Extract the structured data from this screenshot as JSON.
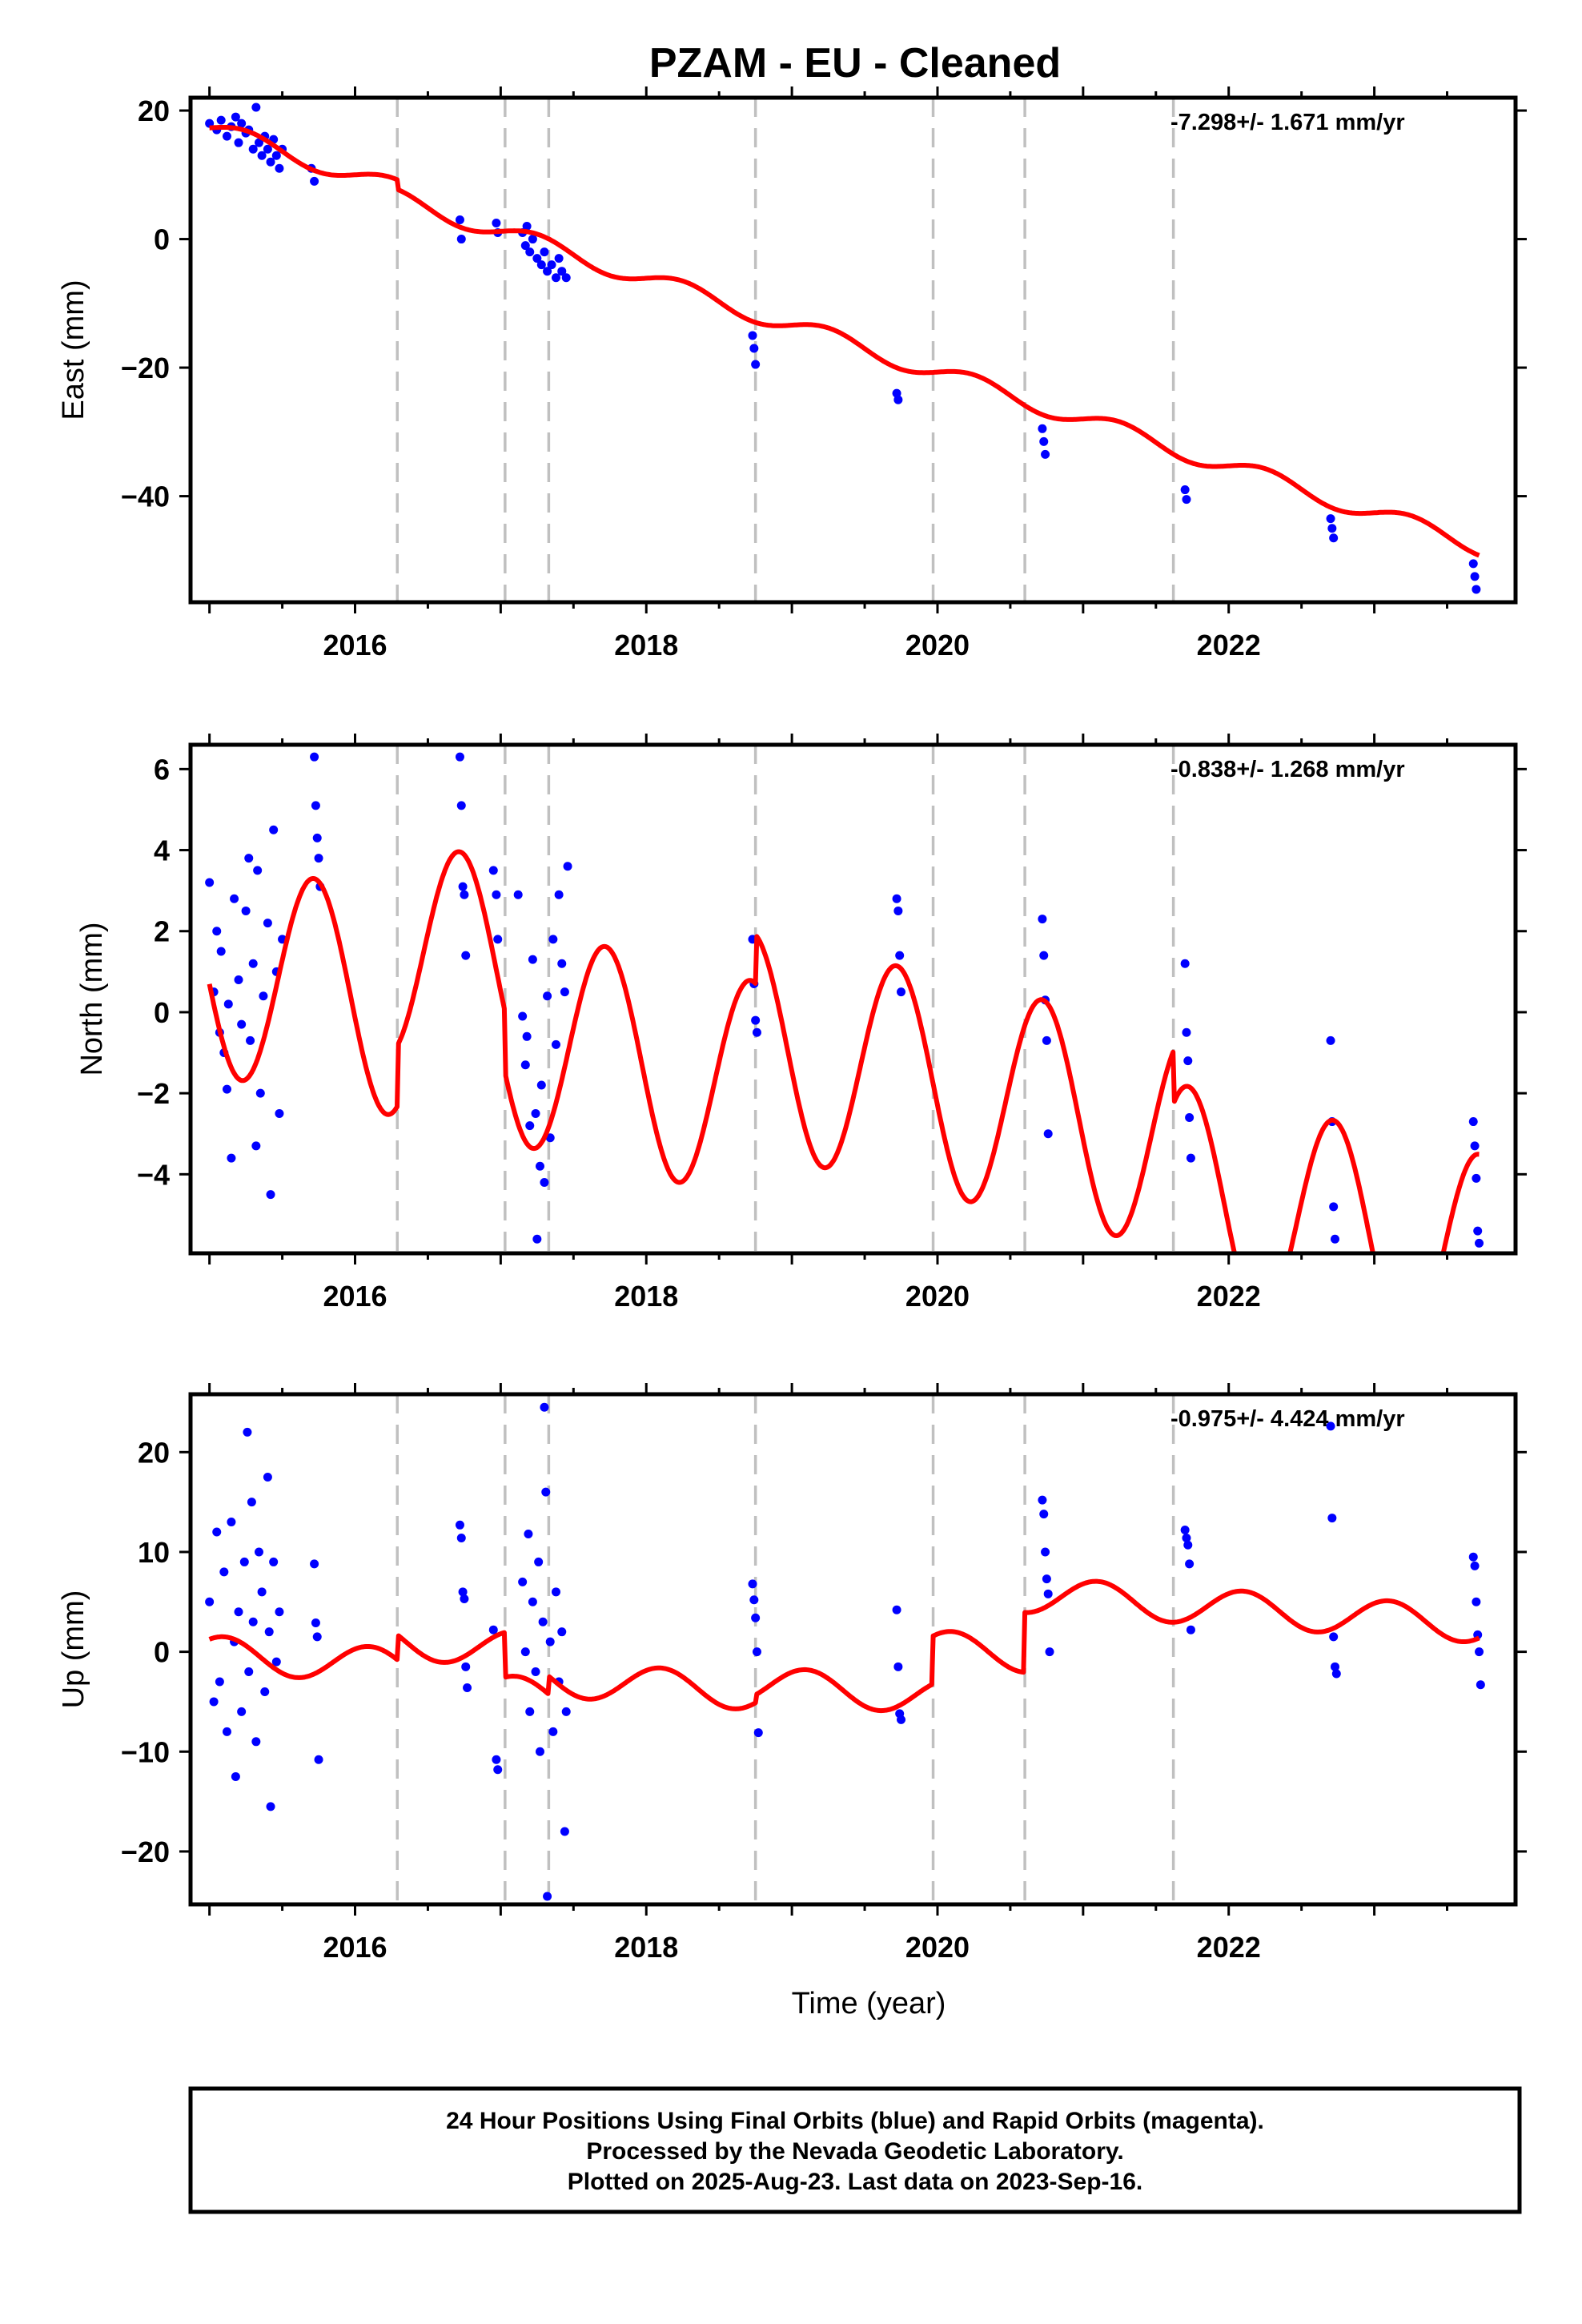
{
  "title": "PZAM  - EU - Cleaned",
  "colors": {
    "final_orbits": "#0000ff",
    "model": "#ff0000",
    "breaks": "#c0c0c0",
    "frame": "#000000"
  },
  "xlabel": "Time (year)",
  "footer": {
    "line1": "24 Hour Positions Using Final Orbits (blue) and Rapid Orbits (magenta).",
    "line2": "Processed by the Nevada Geodetic Laboratory.",
    "line3": "Plotted on 2025-Aug-23. Last data on 2023-Sep-16."
  },
  "chart_data": [
    {
      "type": "scatter",
      "component": "east",
      "ylabel": "East (mm)",
      "rate_text": "-7.298+/- 1.671 mm/yr",
      "xlim": [
        2014.87,
        2023.97
      ],
      "ylim": [
        -56.5,
        22.0
      ],
      "xticks": [
        2016,
        2018,
        2020,
        2022
      ],
      "yticks": [
        20,
        0,
        -20,
        -40
      ],
      "step_epochs": [
        2016.29,
        2017.03,
        2017.33,
        2018.75,
        2019.97,
        2020.6,
        2021.62
      ],
      "points": [
        [
          2015.0,
          18
        ],
        [
          2015.05,
          17
        ],
        [
          2015.08,
          18.5
        ],
        [
          2015.12,
          16
        ],
        [
          2015.15,
          17.5
        ],
        [
          2015.18,
          19
        ],
        [
          2015.2,
          15
        ],
        [
          2015.22,
          18
        ],
        [
          2015.25,
          16.5
        ],
        [
          2015.27,
          17
        ],
        [
          2015.3,
          14
        ],
        [
          2015.32,
          20.5
        ],
        [
          2015.34,
          15
        ],
        [
          2015.36,
          13
        ],
        [
          2015.38,
          16
        ],
        [
          2015.4,
          14
        ],
        [
          2015.42,
          12
        ],
        [
          2015.44,
          15.5
        ],
        [
          2015.46,
          13
        ],
        [
          2015.48,
          11
        ],
        [
          2015.5,
          14
        ],
        [
          2015.7,
          11
        ],
        [
          2015.72,
          9
        ],
        [
          2016.72,
          3
        ],
        [
          2016.73,
          0
        ],
        [
          2016.97,
          2.5
        ],
        [
          2016.98,
          1
        ],
        [
          2017.15,
          1
        ],
        [
          2017.17,
          -1
        ],
        [
          2017.18,
          2
        ],
        [
          2017.2,
          -2
        ],
        [
          2017.22,
          0
        ],
        [
          2017.25,
          -3
        ],
        [
          2017.28,
          -4
        ],
        [
          2017.3,
          -2
        ],
        [
          2017.32,
          -5
        ],
        [
          2017.35,
          -4
        ],
        [
          2017.38,
          -6
        ],
        [
          2017.4,
          -3
        ],
        [
          2017.42,
          -5
        ],
        [
          2017.45,
          -6
        ],
        [
          2018.73,
          -15
        ],
        [
          2018.74,
          -17
        ],
        [
          2018.75,
          -19.5
        ],
        [
          2019.72,
          -24
        ],
        [
          2019.73,
          -25
        ],
        [
          2020.72,
          -29.5
        ],
        [
          2020.73,
          -31.5
        ],
        [
          2020.74,
          -33.5
        ],
        [
          2021.7,
          -39
        ],
        [
          2021.71,
          -40.5
        ],
        [
          2022.7,
          -43.5
        ],
        [
          2022.71,
          -45
        ],
        [
          2022.72,
          -46.5
        ],
        [
          2023.68,
          -50.5
        ],
        [
          2023.69,
          -52.5
        ],
        [
          2023.7,
          -54.5
        ]
      ],
      "model": {
        "base": 17.3,
        "slope": -7.298,
        "amp": 1.4,
        "phase": 2015.0,
        "offsets": [
          [
            2016.29,
            -1.5
          ],
          [
            2017.03,
            0
          ],
          [
            2017.33,
            0
          ],
          [
            2018.75,
            0
          ],
          [
            2019.97,
            0
          ],
          [
            2020.6,
            0
          ],
          [
            2021.62,
            0
          ]
        ]
      }
    },
    {
      "type": "scatter",
      "component": "north",
      "ylabel": "North (mm)",
      "rate_text": "-0.838+/- 1.268 mm/yr",
      "xlim": [
        2014.87,
        2023.97
      ],
      "ylim": [
        -5.95,
        6.6
      ],
      "xticks": [
        2016,
        2018,
        2020,
        2022
      ],
      "yticks": [
        6,
        4,
        2,
        0,
        -2,
        -4
      ],
      "step_epochs": [
        2016.29,
        2017.03,
        2017.33,
        2018.75,
        2019.97,
        2020.6,
        2021.62
      ],
      "points": [
        [
          2015.0,
          3.2
        ],
        [
          2015.03,
          0.5
        ],
        [
          2015.05,
          2
        ],
        [
          2015.07,
          -0.5
        ],
        [
          2015.08,
          1.5
        ],
        [
          2015.1,
          -1
        ],
        [
          2015.12,
          -1.9
        ],
        [
          2015.13,
          0.2
        ],
        [
          2015.15,
          -3.6
        ],
        [
          2015.17,
          2.8
        ],
        [
          2015.2,
          0.8
        ],
        [
          2015.22,
          -0.3
        ],
        [
          2015.25,
          2.5
        ],
        [
          2015.27,
          3.8
        ],
        [
          2015.28,
          -0.7
        ],
        [
          2015.3,
          1.2
        ],
        [
          2015.32,
          -3.3
        ],
        [
          2015.33,
          3.5
        ],
        [
          2015.35,
          -2
        ],
        [
          2015.37,
          0.4
        ],
        [
          2015.4,
          2.2
        ],
        [
          2015.42,
          -4.5
        ],
        [
          2015.44,
          4.5
        ],
        [
          2015.46,
          1
        ],
        [
          2015.48,
          -2.5
        ],
        [
          2015.5,
          1.8
        ],
        [
          2015.72,
          6.3
        ],
        [
          2015.73,
          5.1
        ],
        [
          2015.74,
          4.3
        ],
        [
          2015.75,
          3.8
        ],
        [
          2015.76,
          3.1
        ],
        [
          2016.72,
          6.3
        ],
        [
          2016.73,
          5.1
        ],
        [
          2016.74,
          3.1
        ],
        [
          2016.75,
          2.9
        ],
        [
          2016.76,
          1.4
        ],
        [
          2016.95,
          3.5
        ],
        [
          2016.97,
          2.9
        ],
        [
          2016.98,
          1.8
        ],
        [
          2017.12,
          2.9
        ],
        [
          2017.15,
          -0.1
        ],
        [
          2017.17,
          -1.3
        ],
        [
          2017.18,
          -0.6
        ],
        [
          2017.2,
          -2.8
        ],
        [
          2017.22,
          1.3
        ],
        [
          2017.24,
          -2.5
        ],
        [
          2017.25,
          -5.6
        ],
        [
          2017.27,
          -3.8
        ],
        [
          2017.28,
          -1.8
        ],
        [
          2017.3,
          -4.2
        ],
        [
          2017.32,
          0.4
        ],
        [
          2017.34,
          -3.1
        ],
        [
          2017.36,
          1.8
        ],
        [
          2017.38,
          -0.8
        ],
        [
          2017.4,
          2.9
        ],
        [
          2017.42,
          1.2
        ],
        [
          2017.44,
          0.5
        ],
        [
          2017.46,
          3.6
        ],
        [
          2018.73,
          1.8
        ],
        [
          2018.74,
          0.7
        ],
        [
          2018.75,
          -0.2
        ],
        [
          2018.76,
          -0.5
        ],
        [
          2019.72,
          2.8
        ],
        [
          2019.73,
          2.5
        ],
        [
          2019.74,
          1.4
        ],
        [
          2019.75,
          0.5
        ],
        [
          2020.72,
          2.3
        ],
        [
          2020.73,
          1.4
        ],
        [
          2020.74,
          0.3
        ],
        [
          2020.75,
          -0.7
        ],
        [
          2020.76,
          -3
        ],
        [
          2021.7,
          1.2
        ],
        [
          2021.71,
          -0.5
        ],
        [
          2021.72,
          -1.2
        ],
        [
          2021.73,
          -2.6
        ],
        [
          2021.74,
          -3.6
        ],
        [
          2022.7,
          -0.7
        ],
        [
          2022.71,
          -2.7
        ],
        [
          2022.72,
          -4.8
        ],
        [
          2022.73,
          -5.6
        ],
        [
          2023.68,
          -2.7
        ],
        [
          2023.69,
          -3.3
        ],
        [
          2023.7,
          -4.1
        ],
        [
          2023.71,
          -5.4
        ],
        [
          2023.72,
          -5.7
        ]
      ],
      "model": {
        "base": 1.2,
        "slope": -0.838,
        "amp": 2.7,
        "phase": 2015.47,
        "offsets": [
          [
            2016.29,
            1.5
          ],
          [
            2017.03,
            -1.5
          ],
          [
            2017.33,
            0
          ],
          [
            2018.75,
            1.2
          ],
          [
            2019.97,
            0
          ],
          [
            2020.6,
            0
          ],
          [
            2021.62,
            -1.3
          ]
        ]
      }
    },
    {
      "type": "scatter",
      "component": "up",
      "ylabel": "Up (mm)",
      "rate_text": "-0.975+/- 4.424 mm/yr",
      "xlim": [
        2014.87,
        2023.97
      ],
      "ylim": [
        -25.3,
        25.8
      ],
      "xticks": [
        2016,
        2018,
        2020,
        2022
      ],
      "yticks": [
        20,
        10,
        0,
        -10,
        -20
      ],
      "step_epochs": [
        2016.29,
        2017.03,
        2017.33,
        2018.75,
        2019.97,
        2020.6,
        2021.62
      ],
      "points": [
        [
          2015.0,
          5
        ],
        [
          2015.03,
          -5
        ],
        [
          2015.05,
          12
        ],
        [
          2015.07,
          -3
        ],
        [
          2015.1,
          8
        ],
        [
          2015.12,
          -8
        ],
        [
          2015.15,
          13
        ],
        [
          2015.17,
          1
        ],
        [
          2015.18,
          -12.5
        ],
        [
          2015.2,
          4
        ],
        [
          2015.22,
          -6
        ],
        [
          2015.24,
          9
        ],
        [
          2015.26,
          22
        ],
        [
          2015.27,
          -2
        ],
        [
          2015.29,
          15
        ],
        [
          2015.3,
          3
        ],
        [
          2015.32,
          -9
        ],
        [
          2015.34,
          10
        ],
        [
          2015.36,
          6
        ],
        [
          2015.38,
          -4
        ],
        [
          2015.4,
          17.5
        ],
        [
          2015.41,
          2
        ],
        [
          2015.42,
          -15.5
        ],
        [
          2015.44,
          9
        ],
        [
          2015.46,
          -1
        ],
        [
          2015.48,
          4
        ],
        [
          2015.72,
          8.8
        ],
        [
          2015.73,
          2.9
        ],
        [
          2015.74,
          1.5
        ],
        [
          2015.75,
          -10.8
        ],
        [
          2016.72,
          12.7
        ],
        [
          2016.73,
          11.4
        ],
        [
          2016.74,
          6
        ],
        [
          2016.75,
          5.3
        ],
        [
          2016.76,
          -1.5
        ],
        [
          2016.77,
          -3.6
        ],
        [
          2016.95,
          2.2
        ],
        [
          2016.97,
          -10.8
        ],
        [
          2016.98,
          -11.8
        ],
        [
          2017.15,
          7
        ],
        [
          2017.17,
          0
        ],
        [
          2017.19,
          11.8
        ],
        [
          2017.2,
          -6
        ],
        [
          2017.22,
          5
        ],
        [
          2017.24,
          -2
        ],
        [
          2017.26,
          9
        ],
        [
          2017.27,
          -10
        ],
        [
          2017.29,
          3
        ],
        [
          2017.3,
          24.5
        ],
        [
          2017.31,
          16
        ],
        [
          2017.32,
          -24.5
        ],
        [
          2017.34,
          1
        ],
        [
          2017.36,
          -8
        ],
        [
          2017.38,
          6
        ],
        [
          2017.4,
          -3
        ],
        [
          2017.42,
          2
        ],
        [
          2017.44,
          -18
        ],
        [
          2017.45,
          -6
        ],
        [
          2018.73,
          6.8
        ],
        [
          2018.74,
          5.2
        ],
        [
          2018.75,
          3.4
        ],
        [
          2018.76,
          0
        ],
        [
          2018.77,
          -8.1
        ],
        [
          2019.72,
          4.2
        ],
        [
          2019.73,
          -1.5
        ],
        [
          2019.74,
          -6.2
        ],
        [
          2019.75,
          -6.8
        ],
        [
          2020.72,
          15.2
        ],
        [
          2020.73,
          13.8
        ],
        [
          2020.74,
          10
        ],
        [
          2020.75,
          7.3
        ],
        [
          2020.76,
          5.8
        ],
        [
          2020.77,
          0
        ],
        [
          2021.7,
          12.2
        ],
        [
          2021.71,
          11.4
        ],
        [
          2021.72,
          10.7
        ],
        [
          2021.73,
          8.8
        ],
        [
          2021.74,
          2.2
        ],
        [
          2022.7,
          22.6
        ],
        [
          2022.71,
          13.4
        ],
        [
          2022.72,
          1.5
        ],
        [
          2022.73,
          -1.5
        ],
        [
          2022.74,
          -2.2
        ],
        [
          2023.68,
          9.5
        ],
        [
          2023.69,
          8.6
        ],
        [
          2023.7,
          5
        ],
        [
          2023.71,
          1.7
        ],
        [
          2023.72,
          0
        ],
        [
          2023.73,
          -3.3
        ]
      ],
      "model": {
        "base": -0.2,
        "slope": -0.975,
        "amp": 1.8,
        "phase": 2014.85,
        "offsets": [
          [
            2016.29,
            2.5
          ],
          [
            2017.03,
            -4.5
          ],
          [
            2017.33,
            1.8
          ],
          [
            2018.75,
            0.8
          ],
          [
            2019.97,
            4.8
          ],
          [
            2020.6,
            6.0
          ],
          [
            2021.62,
            0
          ]
        ]
      }
    }
  ]
}
